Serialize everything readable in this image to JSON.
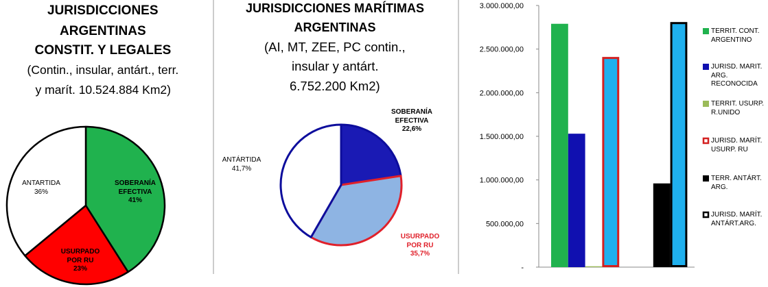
{
  "chart_data": [
    {
      "type": "pie",
      "title": [
        "JURISDICCIONES",
        "ARGENTINAS",
        "CONSTIT. Y LEGALES"
      ],
      "subtitle": [
        "(Contin., insular, antárt., terr.",
        "y marít. 10.524.884 Km2)"
      ],
      "labels": [
        "SOBERANÍA EFECTIVA",
        "USURPADO POR RU",
        "ANTARTIDA"
      ],
      "values": [
        41,
        23,
        36
      ],
      "value_labels": [
        "41%",
        "23%",
        "36%"
      ],
      "colors": [
        "#20b24e",
        "#ff0000",
        "#ffffff"
      ],
      "edgecolors": [
        "#000000",
        "#000000",
        "#000000"
      ],
      "label_colors": [
        "#000000",
        "#000000",
        "#000000"
      ]
    },
    {
      "type": "pie",
      "title": [
        "JURISDICCIONES MARÍTIMAS",
        "ARGENTINAS"
      ],
      "subtitle": [
        "(AI, MT, ZEE, PC contin.,",
        "insular y antárt.",
        "6.752.200 Km2)"
      ],
      "labels": [
        "SOBERANÍA EFECTIVA",
        "USURPADO POR RU",
        "ANTÁRTIDA"
      ],
      "values": [
        22.6,
        35.7,
        41.7
      ],
      "value_labels": [
        "22,6%",
        "35,7%",
        "41,7%"
      ],
      "colors": [
        "#1a1ab4",
        "#8eb4e3",
        "#ffffff"
      ],
      "edgecolors": [
        "#0d0d9c",
        "#e0202a",
        "#0d0d9c"
      ],
      "label_colors": [
        "#000000",
        "#e0202a",
        "#000000"
      ]
    },
    {
      "type": "bar",
      "categories": [
        null
      ],
      "series": [
        {
          "name": "TERRIT. CONT. ARGENTINO",
          "color": "#20b24e",
          "edgecolor": "#20b24e",
          "values": [
            2790000
          ]
        },
        {
          "name": "JURISD. MARIT. ARG. RECONOCIDA",
          "color": "#1010b0",
          "edgecolor": "#1010b0",
          "values": [
            1530000
          ]
        },
        {
          "name": "TERRIT. USURP. R.UNIDO",
          "color": "#9bbb59",
          "edgecolor": "#9bbb59",
          "values": [
            10000
          ]
        },
        {
          "name": "JURISD. MARÍT. USURP. RU",
          "color": "#1fb0ee",
          "edgecolor": "#d42020",
          "values": [
            2410000
          ]
        },
        {
          "name": "TERR. ANTÁRT. ARG.",
          "color": "#000000",
          "edgecolor": "#000000",
          "values": [
            960000
          ]
        },
        {
          "name": "JURISD. MARÍT. ANTÁRT.ARG.",
          "color": "#1fb0ee",
          "edgecolor": "#000000",
          "values": [
            2810000
          ]
        }
      ],
      "ylim": [
        0,
        3000000
      ],
      "yticks": [
        {
          "value": 0,
          "label": "-"
        },
        {
          "value": 500000,
          "label": "500.000,00"
        },
        {
          "value": 1000000,
          "label": "1.000.000,00"
        },
        {
          "value": 1500000,
          "label": "1.500.000,00"
        },
        {
          "value": 2000000,
          "label": "2.000.000,00"
        },
        {
          "value": 2500000,
          "label": "2.500.000,00"
        },
        {
          "value": 3000000,
          "label": "3.000.000,00"
        }
      ],
      "legend": "right"
    }
  ]
}
